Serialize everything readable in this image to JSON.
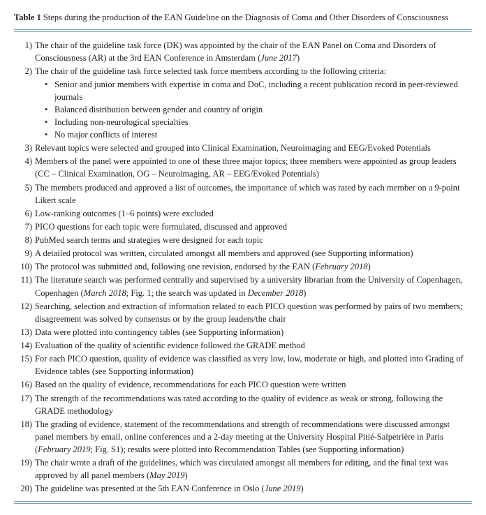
{
  "table": {
    "label": "Table 1",
    "title_rest": "Steps during the production of the EAN Guideline on the Diagnosis of Coma and Other Disorders of Consciousness",
    "rule_color": "#7aa3b8"
  },
  "steps": [
    {
      "text": "The chair of the guideline task force (DK) was appointed by the chair of the EAN Panel on Coma and Disorders of Consciousness (AR) at the 3rd EAN Conference in Amsterdam (",
      "ital": "June 2017",
      "after": ")"
    },
    {
      "text": "The chair of the guideline task force selected task force members according to the following criteria:",
      "sub": [
        "Senior and junior members with expertise in coma and DoC, including a recent publication record in peer-reviewed journals",
        "Balanced distribution between gender and country of origin",
        "Including non-neurological specialties",
        "No major conflicts of interest"
      ]
    },
    {
      "text": "Relevant topics were selected and grouped into Clinical Examination, Neuroimaging and EEG/Evoked Potentials"
    },
    {
      "text": "Members of the panel were appointed to one of these three major topics; three members were appointed as group leaders (CC – Clinical Examination, OG – Neuroimaging, AR – EEG/Evoked Potentials)"
    },
    {
      "text": "The members produced and approved a list of outcomes, the importance of which was rated by each member on a 9-point Likert scale"
    },
    {
      "text": "Low-ranking outcomes (1–6 points) were excluded"
    },
    {
      "text": "PICO questions for each topic were formulated, discussed and approved"
    },
    {
      "text": "PubMed search terms and strategies were designed for each topic"
    },
    {
      "text": "A detailed protocol was written, circulated amongst all members and approved (see Supporting information)"
    },
    {
      "text": "The protocol was submitted and, following one revision, endorsed by the EAN (",
      "ital": "February 2018",
      "after": ")"
    },
    {
      "text": "The literature search was performed centrally and supervised by a university librarian from the University of Copenhagen, Copenhagen (",
      "ital": "March 2018",
      "after": "; Fig. 1; the search was updated in ",
      "ital2": "December 2018",
      "after2": ")"
    },
    {
      "text": "Searching, selection and extraction of information related to each PICO question was performed by pairs of two members; disagreement was solved by consensus or by the group leaders/the chair"
    },
    {
      "text": "Data were plotted into contingency tables (see Supporting information)"
    },
    {
      "text": "Evaluation of the quality of scientific evidence followed the GRADE method"
    },
    {
      "text": "For each PICO question, quality of evidence was classified as very low, low, moderate or high, and plotted into Grading of Evidence tables (see Supporting information)"
    },
    {
      "text": "Based on the quality of evidence, recommendations for each PICO question were written"
    },
    {
      "text": "The strength of the recommendations was rated according to the quality of evidence as weak or strong, following the GRADE methodology"
    },
    {
      "text": "The grading of evidence, statement of the recommendations and strength of recommendations were discussed amongst panel members by email, online conferences and a 2-day meeting at the University Hospital Pitié-Salpetrière in Paris (",
      "ital": "February 2019",
      "after": "; Fig. S1); results were plotted into Recommendation Tables (see Supporting information)"
    },
    {
      "text": "The chair wrote a draft of the guidelines, which was circulated amongst all members for editing, and the final text was approved by all panel members (",
      "ital": "May 2019",
      "after": ")"
    },
    {
      "text": "The guideline was presented at the 5th EAN Conference in Oslo (",
      "ital": "June 2019",
      "after": ")"
    }
  ]
}
